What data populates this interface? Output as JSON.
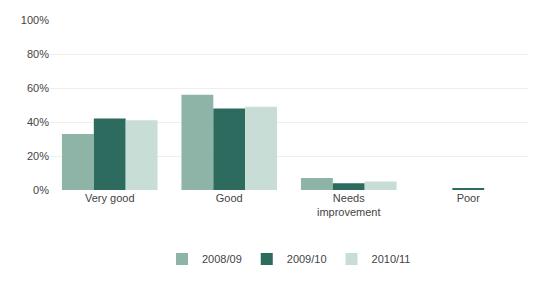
{
  "chart_data": {
    "type": "bar",
    "categories": [
      "Very good",
      "Good",
      "Needs\nimprovement",
      "Poor"
    ],
    "series": [
      {
        "name": "2008/09",
        "color": "#8db4a7",
        "values": [
          33,
          56,
          7,
          0
        ]
      },
      {
        "name": "2009/10",
        "color": "#2d6b5e",
        "values": [
          42,
          48,
          4,
          1
        ]
      },
      {
        "name": "2010/11",
        "color": "#c8ddd5",
        "values": [
          41,
          49,
          5,
          0
        ]
      }
    ],
    "ylim": [
      0,
      100
    ],
    "yticks": [
      {
        "value": 0,
        "label": "0%"
      },
      {
        "value": 20,
        "label": "20%"
      },
      {
        "value": 40,
        "label": "40%"
      },
      {
        "value": 60,
        "label": "60%"
      },
      {
        "value": 80,
        "label": "80%"
      },
      {
        "value": 100,
        "label": "100%"
      }
    ],
    "grid": true,
    "legend": "bottom"
  }
}
